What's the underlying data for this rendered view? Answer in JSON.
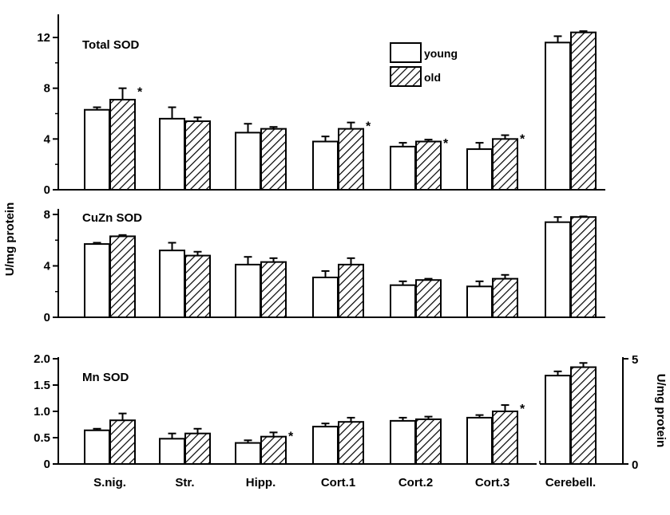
{
  "chart_data": {
    "type": "bar",
    "categories": [
      "S.nig.",
      "Str.",
      "Hipp.",
      "Cort.1",
      "Cort.2",
      "Cort.3",
      "Cerebell."
    ],
    "ylabel": "U/mg protein",
    "legend": {
      "placement": "top-center",
      "entries": [
        "young",
        "old"
      ]
    },
    "significance_marker": "*",
    "panels": [
      {
        "title": "Total SOD",
        "ylim": [
          0,
          14
        ],
        "yticks": [
          "0",
          "4",
          "8",
          "12"
        ],
        "series": [
          {
            "name": "young",
            "values": [
              6.3,
              5.6,
              4.5,
              3.8,
              3.4,
              3.2,
              11.6
            ],
            "errors": [
              0.2,
              0.9,
              0.7,
              0.4,
              0.3,
              0.5,
              0.5
            ]
          },
          {
            "name": "old",
            "values": [
              7.1,
              5.4,
              4.8,
              4.8,
              3.8,
              4.0,
              12.4
            ],
            "errors": [
              0.9,
              0.3,
              0.15,
              0.5,
              0.15,
              0.3,
              0.1
            ]
          }
        ],
        "significant": [
          0,
          3,
          4,
          5
        ]
      },
      {
        "title": "CuZn SOD",
        "ylim": [
          0,
          8
        ],
        "yticks": [
          "0",
          "4",
          "8"
        ],
        "series": [
          {
            "name": "young",
            "values": [
              5.7,
              5.2,
              4.1,
              3.1,
              2.5,
              2.4,
              7.4
            ],
            "errors": [
              0.1,
              0.6,
              0.6,
              0.5,
              0.3,
              0.4,
              0.4
            ]
          },
          {
            "name": "old",
            "values": [
              6.3,
              4.8,
              4.3,
              4.1,
              2.9,
              3.0,
              7.8
            ],
            "errors": [
              0.1,
              0.3,
              0.3,
              0.5,
              0.1,
              0.3,
              0.05
            ]
          }
        ],
        "significant": []
      },
      {
        "title": "Mn SOD",
        "ylim": [
          0,
          2
        ],
        "yticks": [
          "0",
          "0.5",
          "1.0",
          "1.5",
          "2.0"
        ],
        "series": [
          {
            "name": "young",
            "values": [
              0.64,
              0.48,
              0.4,
              0.71,
              0.82,
              0.88,
              4.2
            ],
            "errors": [
              0.03,
              0.1,
              0.05,
              0.06,
              0.06,
              0.05,
              0.2
            ]
          },
          {
            "name": "old",
            "values": [
              0.83,
              0.58,
              0.52,
              0.8,
              0.85,
              1.0,
              4.6
            ],
            "errors": [
              0.13,
              0.09,
              0.08,
              0.08,
              0.05,
              0.12,
              0.2
            ]
          }
        ],
        "significant": [
          2,
          5
        ],
        "right_axis": {
          "applies_to": "Cerebell.",
          "ylim": [
            0,
            5
          ],
          "yticks": [
            "0",
            "5"
          ],
          "label": "U/mg protein"
        }
      }
    ]
  }
}
